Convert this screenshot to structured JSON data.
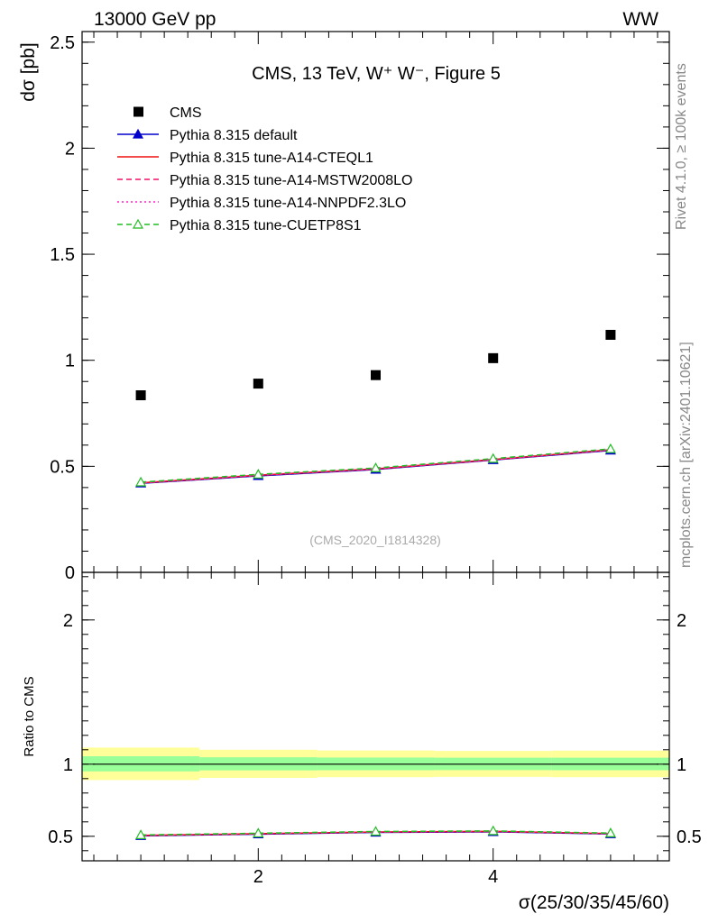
{
  "header": {
    "left": "13000 GeV pp",
    "right": "WW"
  },
  "side_labels": {
    "rivet": "Rivet 4.1.0, ≥ 100k events",
    "mcplots": "mcplots.cern.ch [arXiv:2401.10621]"
  },
  "chart_data": [
    {
      "panel": "main",
      "type": "scatter",
      "title": "CMS, 13 TeV, W⁺ W⁻, Figure 5",
      "watermark": "(CMS_2020_I1814328)",
      "ylabel": "dσ [pb]",
      "xlim": [
        0.5,
        5.5
      ],
      "ylim": [
        0,
        2.55
      ],
      "yticks": [
        0,
        0.5,
        1,
        1.5,
        2,
        2.5
      ],
      "ytick_labels": [
        "0",
        "0.5",
        "1",
        "1.5",
        "2",
        "2.5"
      ],
      "x": [
        1,
        2,
        3,
        4,
        5
      ],
      "legend_position": "top-left",
      "series": [
        {
          "name": "CMS",
          "color": "#000000",
          "style": "data",
          "values": [
            0.835,
            0.89,
            0.93,
            1.01,
            1.12
          ]
        },
        {
          "name": "Pythia 8.315 default",
          "color": "#0000cc",
          "style": "solid-triangle",
          "values": [
            0.42,
            0.455,
            0.485,
            0.53,
            0.575
          ]
        },
        {
          "name": "Pythia 8.315 tune-A14-CTEQL1",
          "color": "#ee1111",
          "style": "solid",
          "values": [
            0.422,
            0.458,
            0.488,
            0.532,
            0.578
          ]
        },
        {
          "name": "Pythia 8.315 tune-A14-MSTW2008LO",
          "color": "#ee1166",
          "style": "dashed",
          "values": [
            0.421,
            0.457,
            0.487,
            0.531,
            0.577
          ]
        },
        {
          "name": "Pythia 8.315 tune-A14-NNPDF2.3LO",
          "color": "#ff22cc",
          "style": "dotted",
          "values": [
            0.423,
            0.459,
            0.489,
            0.533,
            0.579
          ]
        },
        {
          "name": "Pythia 8.315 tune-CUETP8S1",
          "color": "#22bb22",
          "style": "dashed-open-triangle",
          "values": [
            0.425,
            0.462,
            0.492,
            0.536,
            0.582
          ]
        }
      ]
    },
    {
      "panel": "ratio",
      "type": "line",
      "ylabel": "Ratio to CMS",
      "xlabel": "σ(25/30/35/45/60)",
      "xlim": [
        0.5,
        5.5
      ],
      "ylim": [
        0.33,
        2.33
      ],
      "yticks": [
        0.5,
        1,
        2
      ],
      "ytick_labels": [
        "0.5",
        "1",
        "2"
      ],
      "xticks": [
        2,
        4
      ],
      "xtick_labels": [
        "2",
        "4"
      ],
      "x": [
        1,
        2,
        3,
        4,
        5
      ],
      "band_edges": [
        0.5,
        1.5,
        2.5,
        3.5,
        4.5,
        5.5
      ],
      "band_inner": [
        [
          0.95,
          1.055
        ],
        [
          0.957,
          1.048
        ],
        [
          0.958,
          1.046
        ],
        [
          0.959,
          1.045
        ],
        [
          0.958,
          1.045
        ]
      ],
      "band_outer": [
        [
          0.89,
          1.115
        ],
        [
          0.905,
          1.1
        ],
        [
          0.91,
          1.095
        ],
        [
          0.912,
          1.092
        ],
        [
          0.91,
          1.094
        ]
      ],
      "band_inner_color": "#99ff99",
      "band_outer_color": "#ffff99",
      "series": [
        {
          "name": "Pythia 8.315 default",
          "color": "#0000cc",
          "style": "solid-triangle",
          "values": [
            0.503,
            0.515,
            0.527,
            0.531,
            0.516
          ]
        },
        {
          "name": "Pythia 8.315 tune-A14-CTEQL1",
          "color": "#ee1111",
          "style": "solid",
          "values": [
            0.506,
            0.518,
            0.53,
            0.534,
            0.519
          ]
        },
        {
          "name": "Pythia 8.315 tune-A14-MSTW2008LO",
          "color": "#ee1166",
          "style": "dashed",
          "values": [
            0.505,
            0.517,
            0.529,
            0.533,
            0.518
          ]
        },
        {
          "name": "Pythia 8.315 tune-A14-NNPDF2.3LO",
          "color": "#ff22cc",
          "style": "dotted",
          "values": [
            0.507,
            0.519,
            0.531,
            0.535,
            0.52
          ]
        },
        {
          "name": "Pythia 8.315 tune-CUETP8S1",
          "color": "#22bb22",
          "style": "dashed-open-triangle",
          "values": [
            0.509,
            0.521,
            0.533,
            0.537,
            0.522
          ]
        }
      ]
    }
  ]
}
